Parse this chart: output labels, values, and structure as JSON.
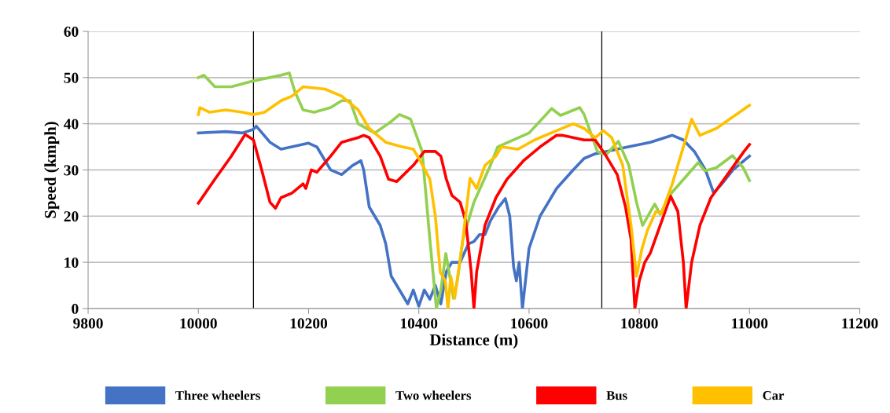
{
  "chart_data": {
    "type": "line",
    "xlabel": "Distance (m)",
    "ylabel": "Speed (kmph)",
    "xlim": [
      9800,
      11200
    ],
    "xticks": [
      9800,
      10000,
      10200,
      10400,
      10600,
      10800,
      11000,
      11200
    ],
    "ylim": [
      0,
      60
    ],
    "yticks": [
      0,
      10,
      20,
      30,
      40,
      50,
      60
    ],
    "grid": "y",
    "legend": "bottom",
    "marker": "none",
    "line_style": "solid",
    "ref_lines": [
      {
        "axis": "x",
        "value": 10100,
        "label": null,
        "color": "#000000"
      },
      {
        "axis": "x",
        "value": 10732,
        "label": null,
        "color": "#000000"
      }
    ],
    "series": [
      {
        "name": "Three wheelers",
        "color": "#4472c4",
        "x": [
          10000,
          10050,
          10080,
          10100,
          10105,
          10130,
          10150,
          10200,
          10215,
          10240,
          10260,
          10280,
          10295,
          10300,
          10310,
          10330,
          10340,
          10350,
          10360,
          10370,
          10380,
          10390,
          10400,
          10410,
          10420,
          10430,
          10440,
          10450,
          10460,
          10475,
          10490,
          10500,
          10510,
          10520,
          10530,
          10545,
          10557,
          10565,
          10572,
          10577,
          10582,
          10588,
          10600,
          10620,
          10650,
          10680,
          10700,
          10720,
          10740,
          10780,
          10820,
          10860,
          10880,
          10900,
          10920,
          10935,
          10950,
          10970,
          10990,
          11000
        ],
        "values": [
          38,
          38.3,
          38,
          38.8,
          39.5,
          36,
          34.5,
          35.8,
          35,
          30,
          29,
          31,
          32,
          30,
          22,
          18,
          14,
          7,
          5,
          3,
          1,
          4,
          0.5,
          4,
          2,
          5,
          1,
          8,
          10,
          10,
          14,
          14.5,
          16,
          16,
          19,
          22,
          23.8,
          20,
          9,
          6,
          10,
          0,
          13,
          20,
          26,
          30,
          32.5,
          33.5,
          34,
          35,
          36,
          37.5,
          36.5,
          34,
          30,
          25,
          27,
          30,
          32,
          33
        ]
      },
      {
        "name": "Two wheelers",
        "color": "#92d050",
        "x": [
          10000,
          10010,
          10030,
          10060,
          10100,
          10150,
          10165,
          10175,
          10190,
          10210,
          10240,
          10260,
          10275,
          10290,
          10320,
          10350,
          10365,
          10385,
          10406,
          10420,
          10432,
          10440,
          10449,
          10463,
          10470,
          10480,
          10500,
          10530,
          10543,
          10600,
          10641,
          10657,
          10692,
          10700,
          10724,
          10740,
          10762,
          10781,
          10795,
          10806,
          10828,
          10838,
          10857,
          10907,
          10919,
          10940,
          10969,
          10988,
          11000
        ],
        "values": [
          50,
          50.5,
          48,
          48,
          49.3,
          50.5,
          51,
          47,
          43,
          42.5,
          43.5,
          45,
          45,
          40,
          38,
          40.5,
          42,
          41,
          34,
          15,
          0,
          4,
          11.9,
          2.2,
          6,
          15,
          23,
          31,
          35,
          38,
          43.3,
          41.8,
          43.5,
          42,
          34,
          33.3,
          36.2,
          31,
          23,
          18,
          22.6,
          20.4,
          24.8,
          31.6,
          29.8,
          30.5,
          33.1,
          30.6,
          27.7
        ]
      },
      {
        "name": "Bus",
        "color": "#ff0000",
        "x": [
          10000,
          10030,
          10060,
          10085,
          10100,
          10115,
          10130,
          10140,
          10150,
          10170,
          10190,
          10195,
          10205,
          10215,
          10240,
          10260,
          10290,
          10300,
          10310,
          10330,
          10345,
          10360,
          10390,
          10410,
          10430,
          10440,
          10450,
          10460,
          10475,
          10485,
          10495,
          10500,
          10505,
          10520,
          10540,
          10560,
          10590,
          10620,
          10650,
          10660,
          10700,
          10720,
          10740,
          10760,
          10775,
          10785,
          10792,
          10800,
          10810,
          10820,
          10835,
          10850,
          10857,
          10870,
          10880,
          10885,
          10895,
          10910,
          10930,
          10960,
          10990,
          11000
        ],
        "values": [
          22.8,
          28,
          33,
          37.7,
          36.5,
          30,
          23,
          21.7,
          24,
          25,
          27,
          26,
          30,
          29.5,
          33,
          36,
          37,
          37.5,
          37,
          33,
          28,
          27.5,
          31,
          34,
          34,
          33,
          28,
          24.5,
          23,
          19,
          8,
          0,
          8,
          18,
          24,
          28,
          32,
          35,
          37.5,
          37.5,
          36.5,
          36.5,
          33,
          29,
          22,
          15,
          0,
          6,
          10,
          12,
          17,
          22,
          24.3,
          21,
          10,
          0,
          10,
          18,
          24,
          29,
          34,
          35.5
        ]
      },
      {
        "name": "Car",
        "color": "#ffc000",
        "x": [
          10000,
          10003,
          10020,
          10050,
          10080,
          10100,
          10120,
          10150,
          10170,
          10190,
          10230,
          10260,
          10290,
          10310,
          10340,
          10370,
          10390,
          10401,
          10420,
          10430,
          10439,
          10448,
          10453,
          10458,
          10465,
          10480,
          10493,
          10505,
          10520,
          10540,
          10550,
          10580,
          10610,
          10650,
          10680,
          10700,
          10720,
          10735,
          10750,
          10770,
          10785,
          10795,
          10805,
          10815,
          10830,
          10840,
          10860,
          10880,
          10895,
          10910,
          10940,
          10970,
          11000
        ],
        "values": [
          42,
          43.5,
          42.5,
          43,
          42.5,
          42,
          42.5,
          45,
          46,
          48,
          47.5,
          46,
          43,
          39,
          36,
          35,
          34.5,
          32.3,
          28,
          20,
          7.8,
          6,
          0,
          7,
          2.2,
          15,
          28.2,
          26,
          31,
          33,
          35,
          34.5,
          36.5,
          38.5,
          40,
          39,
          37,
          38.5,
          37,
          31,
          18,
          7,
          13,
          17,
          21,
          20.5,
          27,
          35,
          41,
          37.5,
          39,
          41.5,
          44
        ]
      }
    ]
  }
}
